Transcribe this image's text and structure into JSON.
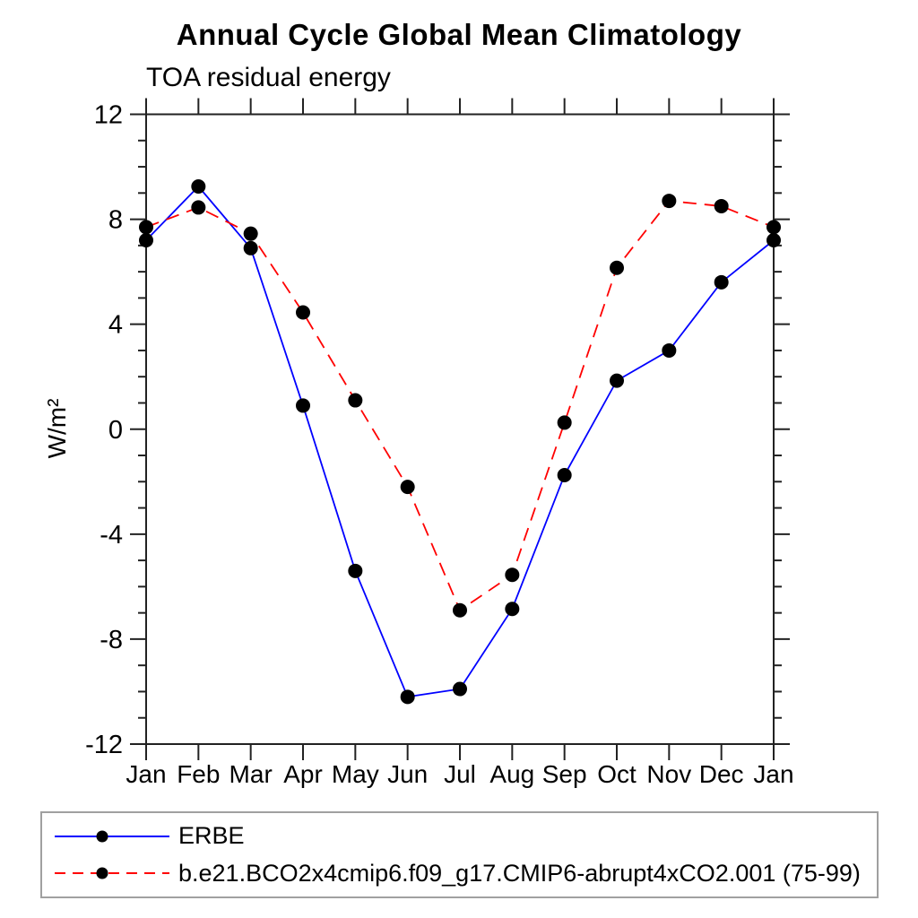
{
  "chart_data": {
    "type": "line",
    "title": "Annual Cycle Global Mean Climatology",
    "subtitle": "TOA residual energy",
    "ylabel": "W/m²",
    "xlabel": "",
    "categories": [
      "Jan",
      "Feb",
      "Mar",
      "Apr",
      "May",
      "Jun",
      "Jul",
      "Aug",
      "Sep",
      "Oct",
      "Nov",
      "Dec",
      "Jan"
    ],
    "ylim": [
      -12,
      12
    ],
    "yticks": [
      -12,
      -8,
      -4,
      0,
      4,
      8,
      12
    ],
    "yminor_step": 1,
    "grid": false,
    "legend_position": "bottom-box",
    "marker": "filled-circle",
    "marker_color": "#000000",
    "frame_color": "#222222",
    "series": [
      {
        "name": "ERBE",
        "color": "#0000ff",
        "line_style": "solid",
        "values": [
          7.2,
          9.25,
          6.9,
          0.9,
          -5.4,
          -10.2,
          -9.9,
          -6.85,
          -1.75,
          1.85,
          3.0,
          5.6,
          7.2
        ]
      },
      {
        "name": "b.e21.BCO2x4cmip6.f09_g17.CMIP6-abrupt4xCO2.001 (75-99)",
        "color": "#ff0000",
        "line_style": "dashed",
        "values": [
          7.7,
          8.45,
          7.45,
          4.45,
          1.1,
          -2.2,
          -6.9,
          -5.55,
          0.25,
          6.15,
          8.7,
          8.5,
          7.7
        ]
      }
    ]
  }
}
